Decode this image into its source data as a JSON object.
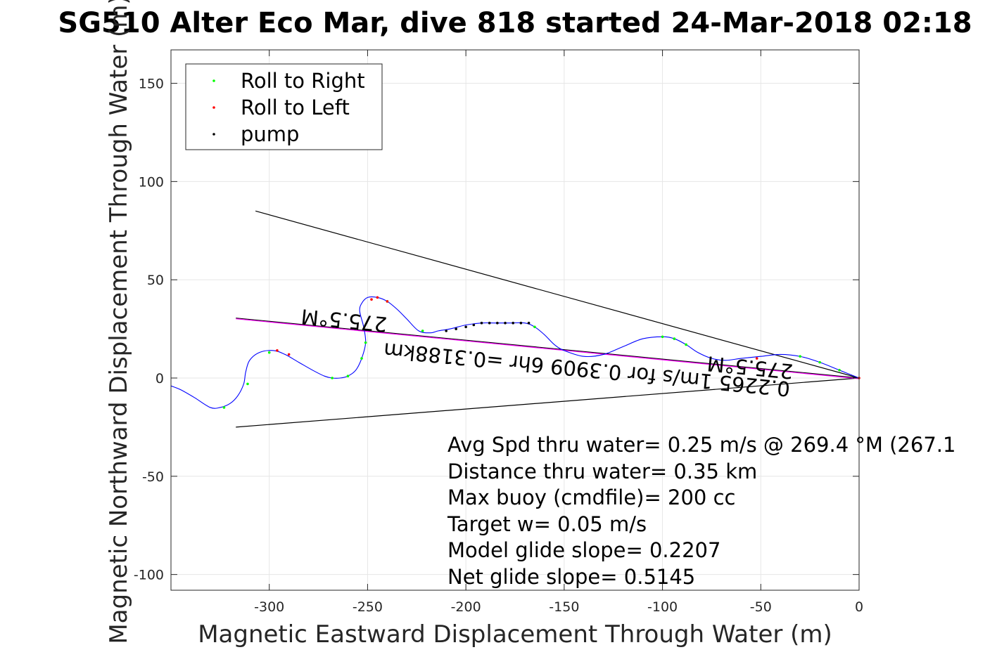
{
  "chart_data": {
    "type": "line",
    "title": "SG510 Alter Eco Mar, dive 818 started 24-Mar-2018 02:18",
    "xlabel": "Magnetic Eastward Displacement Through Water (m)",
    "ylabel": "Magnetic Northward Displacement Through Water (m)",
    "xlim": [
      -350,
      0
    ],
    "ylim": [
      -108,
      167
    ],
    "xticks": [
      -300,
      -250,
      -200,
      -150,
      -100,
      -50,
      0
    ],
    "yticks": [
      150,
      100,
      50,
      0,
      -50,
      -100
    ],
    "grid": true,
    "legend_position": "top-left",
    "legend": [
      {
        "label": "Roll to Right",
        "color": "#00ff00"
      },
      {
        "label": "Roll to Left",
        "color": "#ff0000"
      },
      {
        "label": "pump",
        "color": "#000000"
      }
    ],
    "colors": {
      "track": "#0000ff",
      "mean_heading": "#ff00ff",
      "envelope": "#000000"
    },
    "track": {
      "x": [
        -350,
        -345,
        -338,
        -330,
        -325,
        -320,
        -316,
        -313,
        -312,
        -310,
        -305,
        -298,
        -292,
        -285,
        -278,
        -272,
        -268,
        -264,
        -260,
        -256,
        -253,
        -251,
        -252,
        -254,
        -253,
        -250,
        -245,
        -240,
        -235,
        -230,
        -224,
        -218,
        -214,
        -208,
        -200,
        -192,
        -185,
        -178,
        -170,
        -165,
        -160,
        -155,
        -150,
        -140,
        -130,
        -120,
        -110,
        -100,
        -94,
        -88,
        -82,
        -75,
        -68,
        -60,
        -50,
        -40,
        -30,
        -20,
        -10,
        0
      ],
      "y": [
        -4,
        -6,
        -10,
        -15,
        -15,
        -13,
        -9,
        -3,
        3,
        9,
        13,
        14,
        12,
        8,
        4,
        1,
        0,
        0,
        1,
        4,
        10,
        18,
        26,
        34,
        38,
        41,
        41,
        39,
        35,
        30,
        24,
        23,
        24,
        25,
        27,
        28,
        28,
        28,
        28,
        26,
        22,
        17,
        14,
        11,
        12,
        16,
        20,
        21,
        20,
        17,
        13,
        10,
        9,
        10,
        11,
        12,
        11,
        8,
        4,
        0
      ]
    },
    "roll_right_points": {
      "x": [
        -323,
        -311,
        -300,
        -268,
        -260,
        -253,
        -251,
        -240,
        -222,
        -165,
        -100,
        -94,
        -88,
        -30,
        -20,
        -10
      ],
      "y": [
        -15,
        -3,
        13,
        0,
        1,
        10,
        18,
        39,
        24,
        26,
        21,
        20,
        17,
        11,
        8,
        4
      ]
    },
    "roll_left_points": {
      "x": [
        -296,
        -290,
        -248,
        -245,
        -240,
        -52,
        0
      ],
      "y": [
        14,
        12,
        40,
        41,
        39,
        10,
        0
      ]
    },
    "pump_points": {
      "x": [
        -210,
        -205,
        -200,
        -196,
        -192,
        -188,
        -184,
        -180,
        -176,
        -172,
        -168
      ],
      "y": [
        24,
        25,
        26,
        27,
        28,
        28,
        28,
        28,
        28,
        28,
        28
      ]
    },
    "mean_heading_line": {
      "x": [
        -317,
        0
      ],
      "y": [
        30.5,
        0
      ],
      "label": "0.2265 1m/s for 0.3909 6hr =0.3188km",
      "heading": "275.5°M"
    },
    "envelope_lines": [
      {
        "x": [
          -307,
          0
        ],
        "y": [
          85,
          0
        ]
      },
      {
        "x": [
          -317,
          0
        ],
        "y": [
          -25,
          0
        ]
      }
    ],
    "rotated_labels": {
      "heading_left": "275.5°M",
      "heading_right": "275.5°M",
      "mean_line_text": "0.2265 1m/s for 0.3909 6hr =0.3188km"
    },
    "annotations": [
      "Avg Spd thru water=  0.25 m/s @ 269.4 °M (267.1",
      "Distance thru water=  0.35 km",
      "Max buoy (cmdfile)= 200 cc",
      "Target w= 0.05 m/s",
      "Model glide slope= 0.2207",
      "Net glide slope= 0.5145"
    ]
  }
}
